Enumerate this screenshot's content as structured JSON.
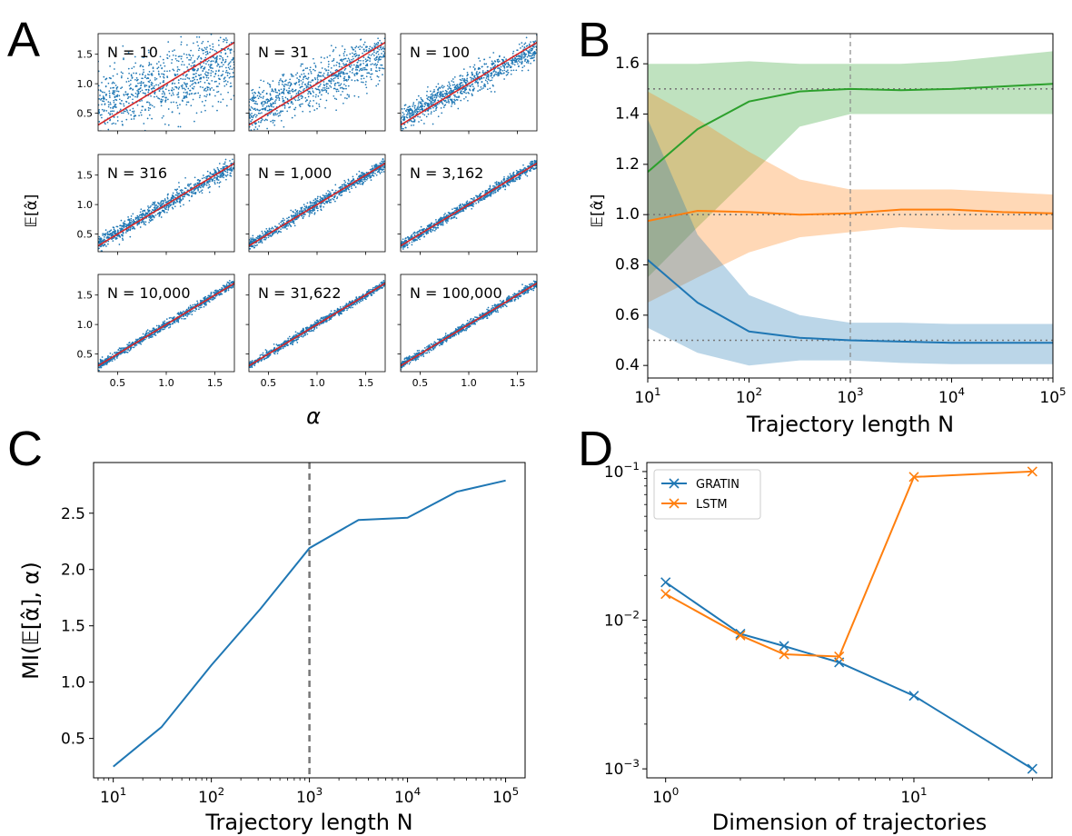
{
  "panels": {
    "A": {
      "letter": "A",
      "xlabel": "α",
      "ylabel": "𝔼[α̂]",
      "xticks": [
        "0.5",
        "1.0",
        "1.5"
      ],
      "yticks": [
        "0.5",
        "1.0",
        "1.5"
      ],
      "subplot_labels": [
        "N = 10",
        "N = 31",
        "N = 100",
        "N = 316",
        "N = 1,000",
        "N = 3,162",
        "N = 10,000",
        "N = 31,622",
        "N = 100,000"
      ]
    },
    "B": {
      "letter": "B"
    },
    "C": {
      "letter": "C"
    },
    "D": {
      "letter": "D"
    }
  },
  "chart_data": [
    {
      "panel": "A",
      "type": "scatter",
      "xlabel": "α",
      "ylabel": "𝔼[α̂]",
      "xlim": [
        0.3,
        1.7
      ],
      "ylim": [
        0.2,
        1.85
      ],
      "reference_line": {
        "from": [
          0.3,
          0.3
        ],
        "to": [
          1.7,
          1.7
        ],
        "color": "#d62728"
      },
      "point_color": "#1f77b4",
      "subplots": [
        {
          "label": "N = 10",
          "spread": 0.28,
          "shrink": 0.55
        },
        {
          "label": "N = 31",
          "spread": 0.2,
          "shrink": 0.7
        },
        {
          "label": "N = 100",
          "spread": 0.11,
          "shrink": 0.85
        },
        {
          "label": "N = 316",
          "spread": 0.07,
          "shrink": 0.95
        },
        {
          "label": "N = 1,000",
          "spread": 0.05,
          "shrink": 0.98
        },
        {
          "label": "N = 3,162",
          "spread": 0.04,
          "shrink": 1.0
        },
        {
          "label": "N = 10,000",
          "spread": 0.035,
          "shrink": 1.0
        },
        {
          "label": "N = 31,622",
          "spread": 0.03,
          "shrink": 1.0
        },
        {
          "label": "N = 100,000",
          "spread": 0.03,
          "shrink": 1.0
        }
      ]
    },
    {
      "panel": "B",
      "type": "line",
      "log_x": true,
      "xlabel": "Trajectory length N",
      "ylabel": "𝔼[α̂]",
      "xlim": [
        10,
        100000
      ],
      "ylim": [
        0.35,
        1.72
      ],
      "xticks": [
        {
          "value": 10,
          "base": "10",
          "exp": "1"
        },
        {
          "value": 100,
          "base": "10",
          "exp": "2"
        },
        {
          "value": 1000,
          "base": "10",
          "exp": "3"
        },
        {
          "value": 10000,
          "base": "10",
          "exp": "4"
        },
        {
          "value": 100000,
          "base": "10",
          "exp": "5"
        }
      ],
      "yticks": [
        "0.4",
        "0.6",
        "0.8",
        "1.0",
        "1.2",
        "1.4",
        "1.6"
      ],
      "x": [
        10,
        31,
        100,
        316,
        1000,
        3162,
        10000,
        31622,
        100000
      ],
      "reference_lines": [
        0.5,
        1.0,
        1.5
      ],
      "vline": 1000,
      "series": [
        {
          "color": "#2ca02c",
          "mean": [
            1.17,
            1.34,
            1.45,
            1.49,
            1.5,
            1.495,
            1.5,
            1.51,
            1.52
          ],
          "lower": [
            0.75,
            0.95,
            1.15,
            1.35,
            1.4,
            1.4,
            1.4,
            1.4,
            1.4
          ],
          "upper": [
            1.6,
            1.6,
            1.61,
            1.6,
            1.6,
            1.6,
            1.61,
            1.63,
            1.65
          ]
        },
        {
          "color": "#ff7f0e",
          "mean": [
            0.975,
            1.015,
            1.01,
            1.0,
            1.005,
            1.02,
            1.02,
            1.01,
            1.005
          ],
          "lower": [
            0.65,
            0.75,
            0.85,
            0.91,
            0.93,
            0.95,
            0.94,
            0.94,
            0.94
          ],
          "upper": [
            1.49,
            1.38,
            1.25,
            1.14,
            1.1,
            1.1,
            1.1,
            1.09,
            1.08
          ]
        },
        {
          "color": "#1f77b4",
          "mean": [
            0.82,
            0.65,
            0.535,
            0.51,
            0.5,
            0.495,
            0.49,
            0.49,
            0.49
          ],
          "lower": [
            0.55,
            0.45,
            0.4,
            0.42,
            0.42,
            0.41,
            0.405,
            0.405,
            0.405
          ],
          "upper": [
            1.38,
            0.92,
            0.68,
            0.6,
            0.57,
            0.57,
            0.565,
            0.565,
            0.565
          ]
        }
      ]
    },
    {
      "panel": "C",
      "type": "line",
      "log_x": true,
      "xlabel": "Trajectory length N",
      "ylabel": "MI(𝔼[α̂], α)",
      "xlim": [
        6.3,
        158000
      ],
      "ylim": [
        0.15,
        2.95
      ],
      "xticks": [
        {
          "value": 10,
          "base": "10",
          "exp": "1"
        },
        {
          "value": 100,
          "base": "10",
          "exp": "2"
        },
        {
          "value": 1000,
          "base": "10",
          "exp": "3"
        },
        {
          "value": 10000,
          "base": "10",
          "exp": "4"
        },
        {
          "value": 100000,
          "base": "10",
          "exp": "5"
        }
      ],
      "yticks": [
        "0.5",
        "1.0",
        "1.5",
        "2.0",
        "2.5"
      ],
      "vline": 1000,
      "series": [
        {
          "color": "#1f77b4",
          "x": [
            10,
            31,
            100,
            316,
            1000,
            3162,
            10000,
            31622,
            100000
          ],
          "values": [
            0.25,
            0.6,
            1.15,
            1.65,
            2.19,
            2.44,
            2.46,
            2.69,
            2.79
          ]
        }
      ]
    },
    {
      "panel": "D",
      "type": "line",
      "log_x": true,
      "log_y": true,
      "xlabel": "Dimension of trajectories",
      "ylabel": "",
      "xlim": [
        0.84,
        36
      ],
      "ylim": [
        0.00087,
        0.115
      ],
      "xticks": [
        {
          "value": 1,
          "base": "10",
          "exp": "0"
        },
        {
          "value": 10,
          "base": "10",
          "exp": "1"
        }
      ],
      "yticks": [
        {
          "value": 0.001,
          "base": "10",
          "exp": "−3"
        },
        {
          "value": 0.01,
          "base": "10",
          "exp": "−2"
        },
        {
          "value": 0.1,
          "base": "10",
          "exp": "−1"
        }
      ],
      "legend": "top-left",
      "x": [
        1,
        2,
        3,
        5,
        10,
        30
      ],
      "series": [
        {
          "name": "GRATIN",
          "color": "#1f77b4",
          "values": [
            0.018,
            0.0081,
            0.0067,
            0.0052,
            0.0031,
            0.001
          ]
        },
        {
          "name": "LSTM",
          "color": "#ff7f0e",
          "values": [
            0.015,
            0.0079,
            0.0059,
            0.0057,
            0.092,
            0.1
          ]
        }
      ]
    }
  ]
}
